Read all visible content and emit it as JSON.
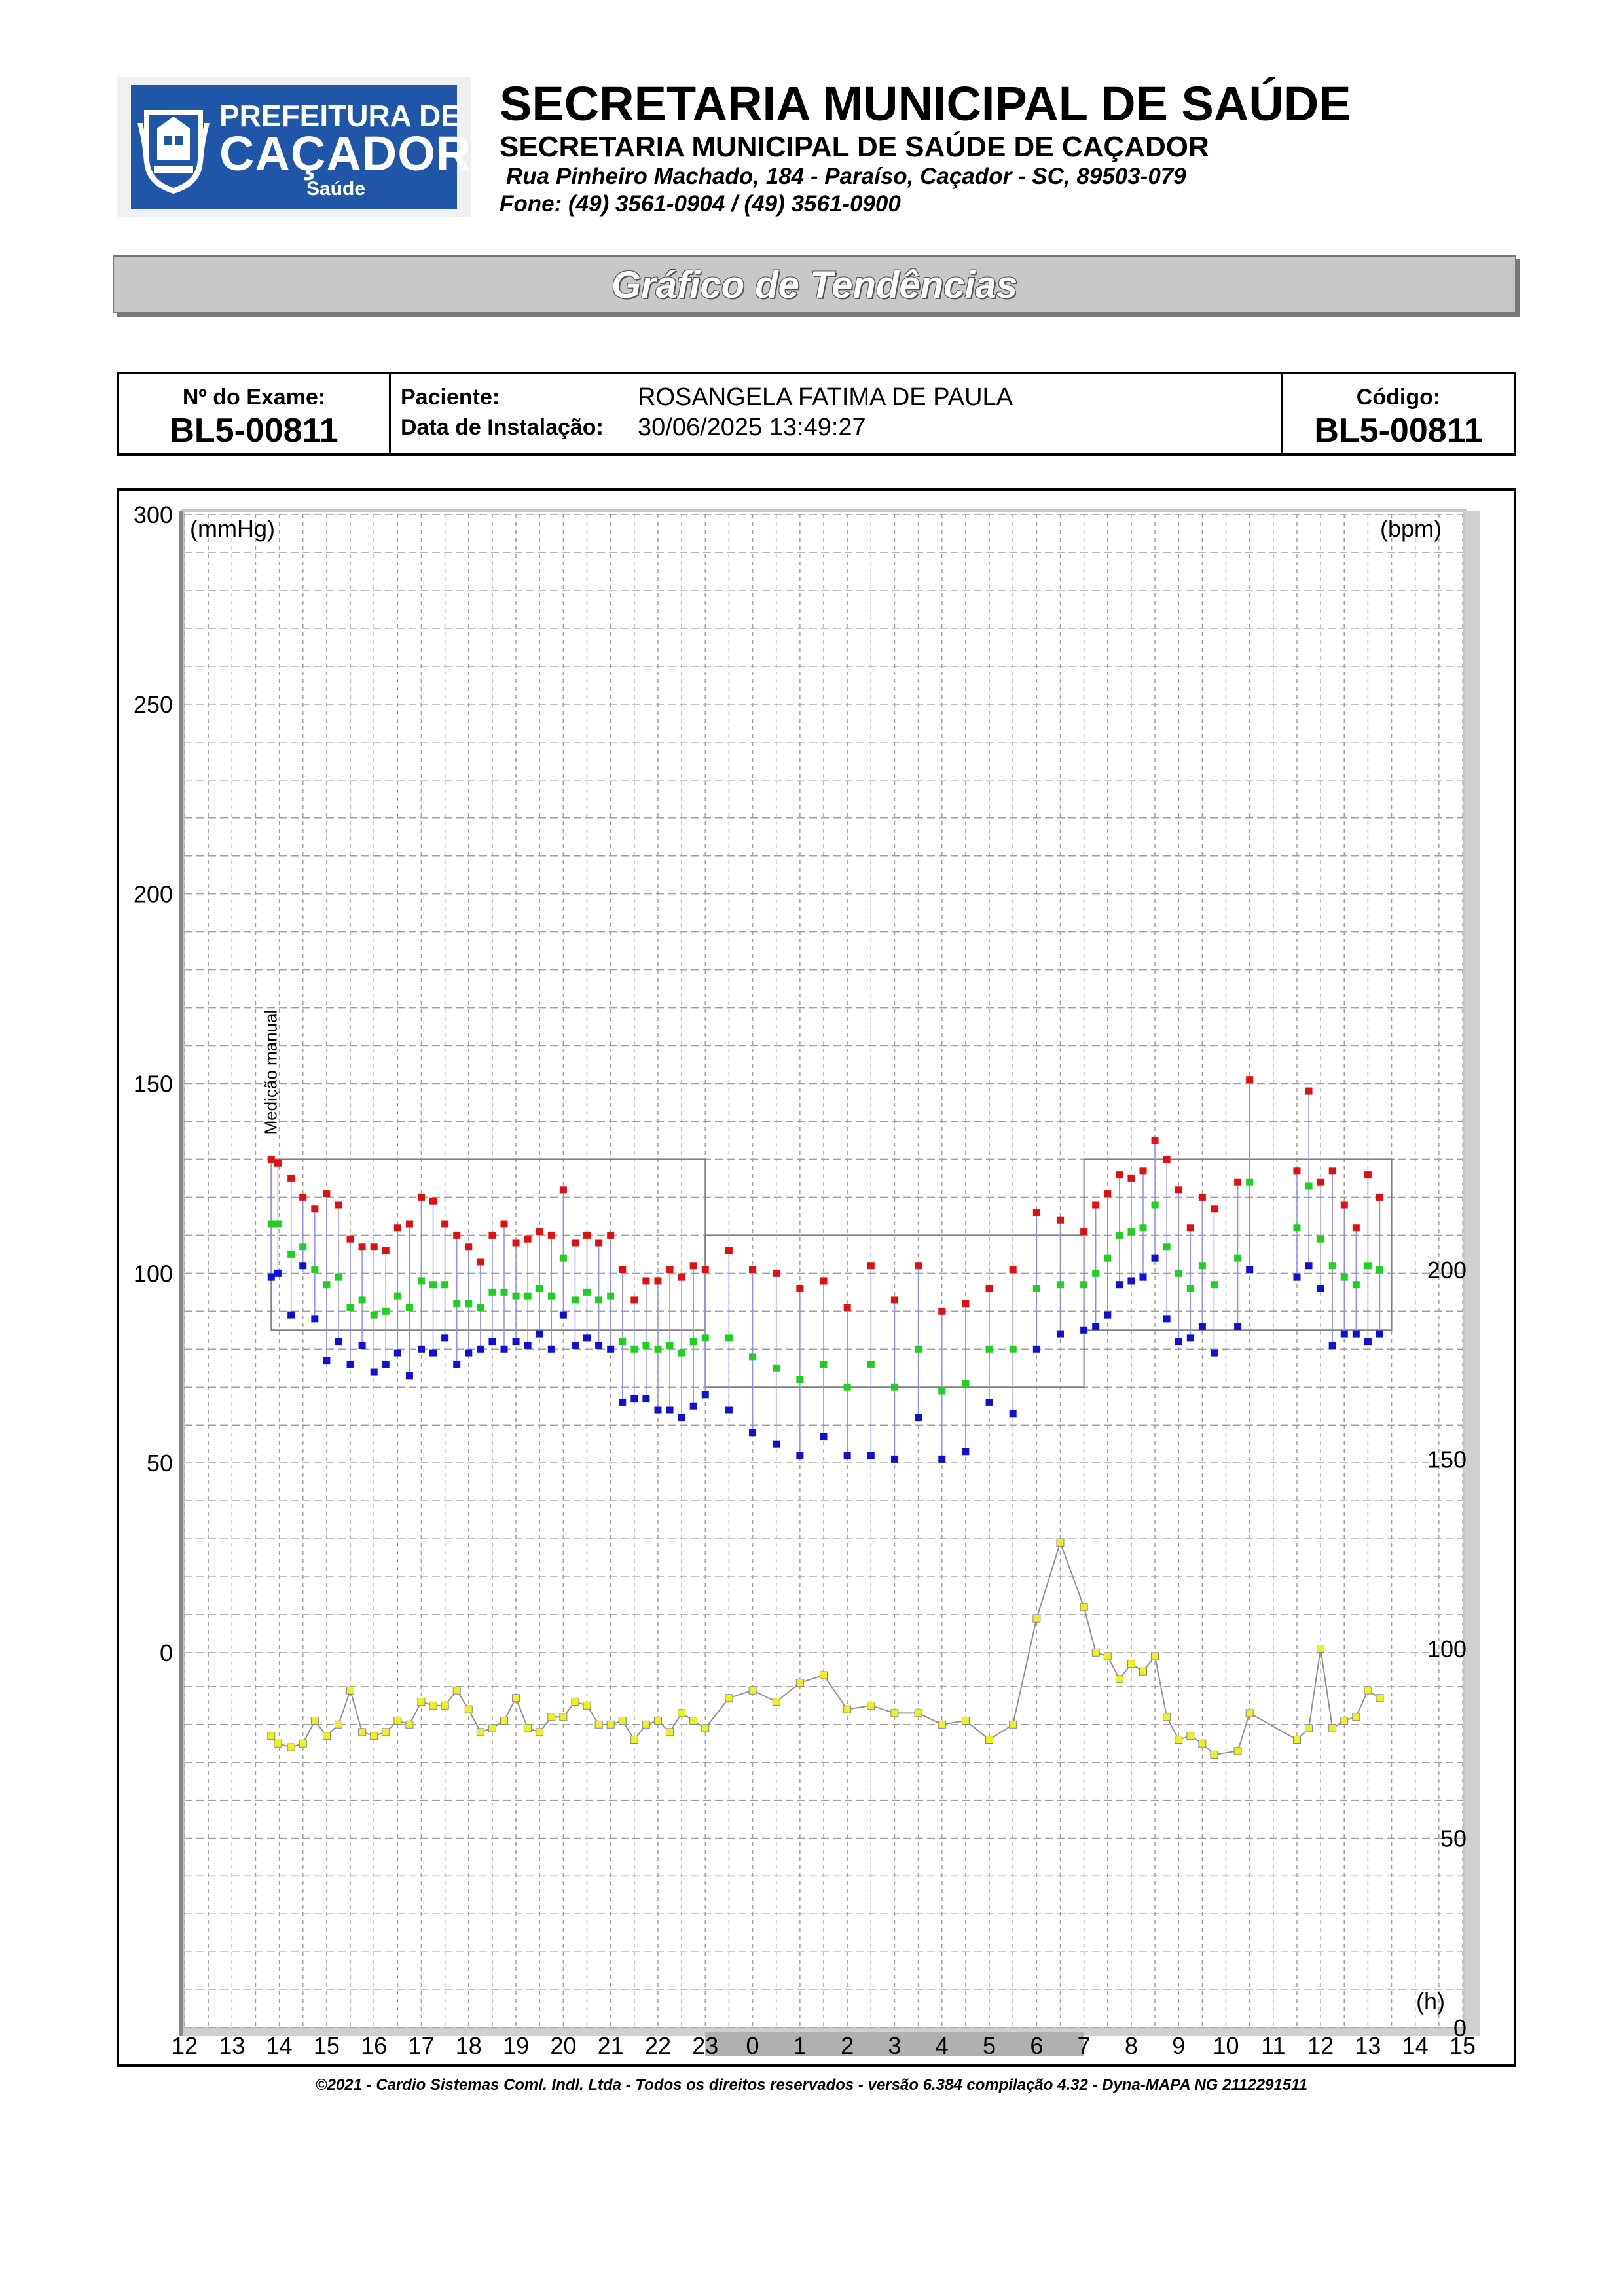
{
  "header": {
    "logo_line1": "PREFEITURA DE",
    "logo_line2": "CAÇADOR",
    "logo_line3": "Saúde",
    "title": "SECRETARIA MUNICIPAL DE SAÚDE",
    "subtitle": "SECRETARIA MUNICIPAL DE SAÚDE DE CAÇADOR",
    "address": "Rua Pinheiro Machado, 184 - Paraíso, Caçador - SC, 89503-079",
    "phone": "Fone: (49) 3561-0904  / (49) 3561-0900"
  },
  "banner": {
    "title": "Gráfico de Tendências"
  },
  "info": {
    "exam_label": "Nº do Exame:",
    "exam_value": "BL5-00811",
    "patient_label": "Paciente:",
    "patient_value": "ROSANGELA FATIMA DE PAULA",
    "install_label": "Data de Instalação:",
    "install_value": "30/06/2025 13:49:27",
    "code_label": "Código:",
    "code_value": "BL5-00811"
  },
  "footer": {
    "text": "©2021 - Cardio Sistemas Coml. Indl. Ltda - Todos os direitos reservados - versão 6.384 compilação 4.32 - Dyna-MAPA NG 2112291511"
  },
  "colors": {
    "systolic": "#e01010",
    "mean": "#20d020",
    "diastolic": "#1010d0",
    "heart_rate": "#f0f020",
    "connector": "#9090f0",
    "hr_line": "#909090",
    "limit_line": "#808080",
    "grid": "#a0a0a0",
    "sleep_band": "#b0b0b0"
  },
  "chart_data": {
    "type": "scatter",
    "left_axis_unit": "(mmHg)",
    "right_axis_unit": "(bpm)",
    "x_unit": "(h)",
    "annotation": "Medição manual",
    "left_ylim": [
      0,
      300
    ],
    "left_ticks": [
      "300",
      "250",
      "200",
      "150",
      "100",
      "50",
      "0"
    ],
    "left_tick_values": [
      300,
      250,
      200,
      150,
      100,
      50,
      0
    ],
    "right_ylim": [
      0,
      300
    ],
    "right_ticks": [
      "200",
      "150",
      "100",
      "50",
      "0"
    ],
    "right_tick_values": [
      200,
      150,
      100,
      50,
      0
    ],
    "x_range_hours": [
      12,
      39
    ],
    "x_ticks": [
      "12",
      "13",
      "14",
      "15",
      "16",
      "17",
      "18",
      "19",
      "20",
      "21",
      "22",
      "23",
      "0",
      "1",
      "2",
      "3",
      "4",
      "5",
      "6",
      "7",
      "8",
      "9",
      "10",
      "11",
      "12",
      "13",
      "14",
      "15"
    ],
    "x_tick_values": [
      12,
      13,
      14,
      15,
      16,
      17,
      18,
      19,
      20,
      21,
      22,
      23,
      24,
      25,
      26,
      27,
      28,
      29,
      30,
      31,
      32,
      33,
      34,
      35,
      36,
      37,
      38,
      39
    ],
    "sleep_period": [
      23,
      31
    ],
    "grid": true,
    "limits": [
      {
        "start": 13.83,
        "end": 23,
        "systolic": 130,
        "diastolic": 85
      },
      {
        "start": 23,
        "end": 31,
        "systolic": 110,
        "diastolic": 70
      },
      {
        "start": 31,
        "end": 37.5,
        "systolic": 130,
        "diastolic": 85
      }
    ],
    "measurements": [
      {
        "t": 13.83,
        "sys": 130,
        "mean": 113,
        "dia": 99,
        "hr": 77
      },
      {
        "t": 13.97,
        "sys": 129,
        "mean": 113,
        "dia": 100,
        "hr": 75
      },
      {
        "t": 14.25,
        "sys": 125,
        "mean": 105,
        "dia": 89,
        "hr": 74
      },
      {
        "t": 14.5,
        "sys": 120,
        "mean": 107,
        "dia": 102,
        "hr": 75
      },
      {
        "t": 14.75,
        "sys": 117,
        "mean": 101,
        "dia": 88,
        "hr": 81
      },
      {
        "t": 15.0,
        "sys": 121,
        "mean": 97,
        "dia": 77,
        "hr": 77
      },
      {
        "t": 15.25,
        "sys": 118,
        "mean": 99,
        "dia": 82,
        "hr": 80
      },
      {
        "t": 15.5,
        "sys": 109,
        "mean": 91,
        "dia": 76,
        "hr": 89
      },
      {
        "t": 15.75,
        "sys": 107,
        "mean": 93,
        "dia": 81,
        "hr": 78
      },
      {
        "t": 16.0,
        "sys": 107,
        "mean": 89,
        "dia": 74,
        "hr": 77
      },
      {
        "t": 16.25,
        "sys": 106,
        "mean": 90,
        "dia": 76,
        "hr": 78
      },
      {
        "t": 16.5,
        "sys": 112,
        "mean": 94,
        "dia": 79,
        "hr": 81
      },
      {
        "t": 16.75,
        "sys": 113,
        "mean": 91,
        "dia": 73,
        "hr": 80
      },
      {
        "t": 17.0,
        "sys": 120,
        "mean": 98,
        "dia": 80,
        "hr": 86
      },
      {
        "t": 17.25,
        "sys": 119,
        "mean": 97,
        "dia": 79,
        "hr": 85
      },
      {
        "t": 17.5,
        "sys": 113,
        "mean": 97,
        "dia": 83,
        "hr": 85
      },
      {
        "t": 17.75,
        "sys": 110,
        "mean": 92,
        "dia": 76,
        "hr": 89
      },
      {
        "t": 18.0,
        "sys": 107,
        "mean": 92,
        "dia": 79,
        "hr": 84
      },
      {
        "t": 18.25,
        "sys": 103,
        "mean": 91,
        "dia": 80,
        "hr": 78
      },
      {
        "t": 18.5,
        "sys": 110,
        "mean": 95,
        "dia": 82,
        "hr": 79
      },
      {
        "t": 18.75,
        "sys": 113,
        "mean": 95,
        "dia": 80,
        "hr": 81
      },
      {
        "t": 19.0,
        "sys": 108,
        "mean": 94,
        "dia": 82,
        "hr": 87
      },
      {
        "t": 19.25,
        "sys": 109,
        "mean": 94,
        "dia": 81,
        "hr": 79
      },
      {
        "t": 19.5,
        "sys": 111,
        "mean": 96,
        "dia": 84,
        "hr": 78
      },
      {
        "t": 19.75,
        "sys": 110,
        "mean": 94,
        "dia": 80,
        "hr": 82
      },
      {
        "t": 20.0,
        "sys": 122,
        "mean": 104,
        "dia": 89,
        "hr": 82
      },
      {
        "t": 20.25,
        "sys": 108,
        "mean": 93,
        "dia": 81,
        "hr": 86
      },
      {
        "t": 20.5,
        "sys": 110,
        "mean": 95,
        "dia": 83,
        "hr": 85
      },
      {
        "t": 20.75,
        "sys": 108,
        "mean": 93,
        "dia": 81,
        "hr": 80
      },
      {
        "t": 21.0,
        "sys": 110,
        "mean": 94,
        "dia": 80,
        "hr": 80
      },
      {
        "t": 21.25,
        "sys": 101,
        "mean": 82,
        "dia": 66,
        "hr": 81
      },
      {
        "t": 21.5,
        "sys": 93,
        "mean": 80,
        "dia": 67,
        "hr": 76
      },
      {
        "t": 21.75,
        "sys": 98,
        "mean": 81,
        "dia": 67,
        "hr": 80
      },
      {
        "t": 22.0,
        "sys": 98,
        "mean": 80,
        "dia": 64,
        "hr": 81
      },
      {
        "t": 22.25,
        "sys": 101,
        "mean": 81,
        "dia": 64,
        "hr": 78
      },
      {
        "t": 22.5,
        "sys": 99,
        "mean": 79,
        "dia": 62,
        "hr": 83
      },
      {
        "t": 22.75,
        "sys": 102,
        "mean": 82,
        "dia": 65,
        "hr": 81
      },
      {
        "t": 23.0,
        "sys": 101,
        "mean": 83,
        "dia": 68,
        "hr": 79
      },
      {
        "t": 23.5,
        "sys": 106,
        "mean": 83,
        "dia": 64,
        "hr": 87
      },
      {
        "t": 24.0,
        "sys": 101,
        "mean": 78,
        "dia": 58,
        "hr": 89
      },
      {
        "t": 24.5,
        "sys": 100,
        "mean": 75,
        "dia": 55,
        "hr": 86
      },
      {
        "t": 25.0,
        "sys": 96,
        "mean": 72,
        "dia": 52,
        "hr": 91
      },
      {
        "t": 25.5,
        "sys": 98,
        "mean": 76,
        "dia": 57,
        "hr": 93
      },
      {
        "t": 26.0,
        "sys": 91,
        "mean": 70,
        "dia": 52,
        "hr": 84
      },
      {
        "t": 26.5,
        "sys": 102,
        "mean": 76,
        "dia": 52,
        "hr": 85
      },
      {
        "t": 27.0,
        "sys": 93,
        "mean": 70,
        "dia": 51,
        "hr": 83
      },
      {
        "t": 27.5,
        "sys": 102,
        "mean": 80,
        "dia": 62,
        "hr": 83
      },
      {
        "t": 28.0,
        "sys": 90,
        "mean": 69,
        "dia": 51,
        "hr": 80
      },
      {
        "t": 28.5,
        "sys": 92,
        "mean": 71,
        "dia": 53,
        "hr": 81
      },
      {
        "t": 29.0,
        "sys": 96,
        "mean": 80,
        "dia": 66,
        "hr": 76
      },
      {
        "t": 29.5,
        "sys": 101,
        "mean": 80,
        "dia": 63,
        "hr": 80
      },
      {
        "t": 30.0,
        "sys": 116,
        "mean": 96,
        "dia": 80,
        "hr": 108
      },
      {
        "t": 30.5,
        "sys": 114,
        "mean": 97,
        "dia": 84,
        "hr": 128
      },
      {
        "t": 31.0,
        "sys": 111,
        "mean": 97,
        "dia": 85,
        "hr": 111
      },
      {
        "t": 31.25,
        "sys": 118,
        "mean": 100,
        "dia": 86,
        "hr": 99
      },
      {
        "t": 31.5,
        "sys": 121,
        "mean": 104,
        "dia": 89,
        "hr": 98
      },
      {
        "t": 31.75,
        "sys": 126,
        "mean": 110,
        "dia": 97,
        "hr": 92
      },
      {
        "t": 32.0,
        "sys": 125,
        "mean": 111,
        "dia": 98,
        "hr": 96
      },
      {
        "t": 32.25,
        "sys": 127,
        "mean": 112,
        "dia": 99,
        "hr": 94
      },
      {
        "t": 32.5,
        "sys": 135,
        "mean": 118,
        "dia": 104,
        "hr": 98
      },
      {
        "t": 32.75,
        "sys": 130,
        "mean": 107,
        "dia": 88,
        "hr": 82
      },
      {
        "t": 33.0,
        "sys": 122,
        "mean": 100,
        "dia": 82,
        "hr": 76
      },
      {
        "t": 33.25,
        "sys": 112,
        "mean": 96,
        "dia": 83,
        "hr": 77
      },
      {
        "t": 33.5,
        "sys": 120,
        "mean": 102,
        "dia": 86,
        "hr": 75
      },
      {
        "t": 33.75,
        "sys": 117,
        "mean": 97,
        "dia": 79,
        "hr": 72
      },
      {
        "t": 34.25,
        "sys": 124,
        "mean": 104,
        "dia": 86,
        "hr": 73
      },
      {
        "t": 34.5,
        "sys": 151,
        "mean": 124,
        "dia": 101,
        "hr": 83
      },
      {
        "t": 35.5,
        "sys": 127,
        "mean": 112,
        "dia": 99,
        "hr": 76
      },
      {
        "t": 35.75,
        "sys": 148,
        "mean": 123,
        "dia": 102,
        "hr": 79
      },
      {
        "t": 36.0,
        "sys": 124,
        "mean": 109,
        "dia": 96,
        "hr": 100
      },
      {
        "t": 36.25,
        "sys": 127,
        "mean": 102,
        "dia": 81,
        "hr": 79
      },
      {
        "t": 36.5,
        "sys": 118,
        "mean": 99,
        "dia": 84,
        "hr": 81
      },
      {
        "t": 36.75,
        "sys": 112,
        "mean": 97,
        "dia": 84,
        "hr": 82
      },
      {
        "t": 37.0,
        "sys": 126,
        "mean": 102,
        "dia": 82,
        "hr": 89
      },
      {
        "t": 37.25,
        "sys": 120,
        "mean": 101,
        "dia": 84,
        "hr": 87
      }
    ]
  }
}
